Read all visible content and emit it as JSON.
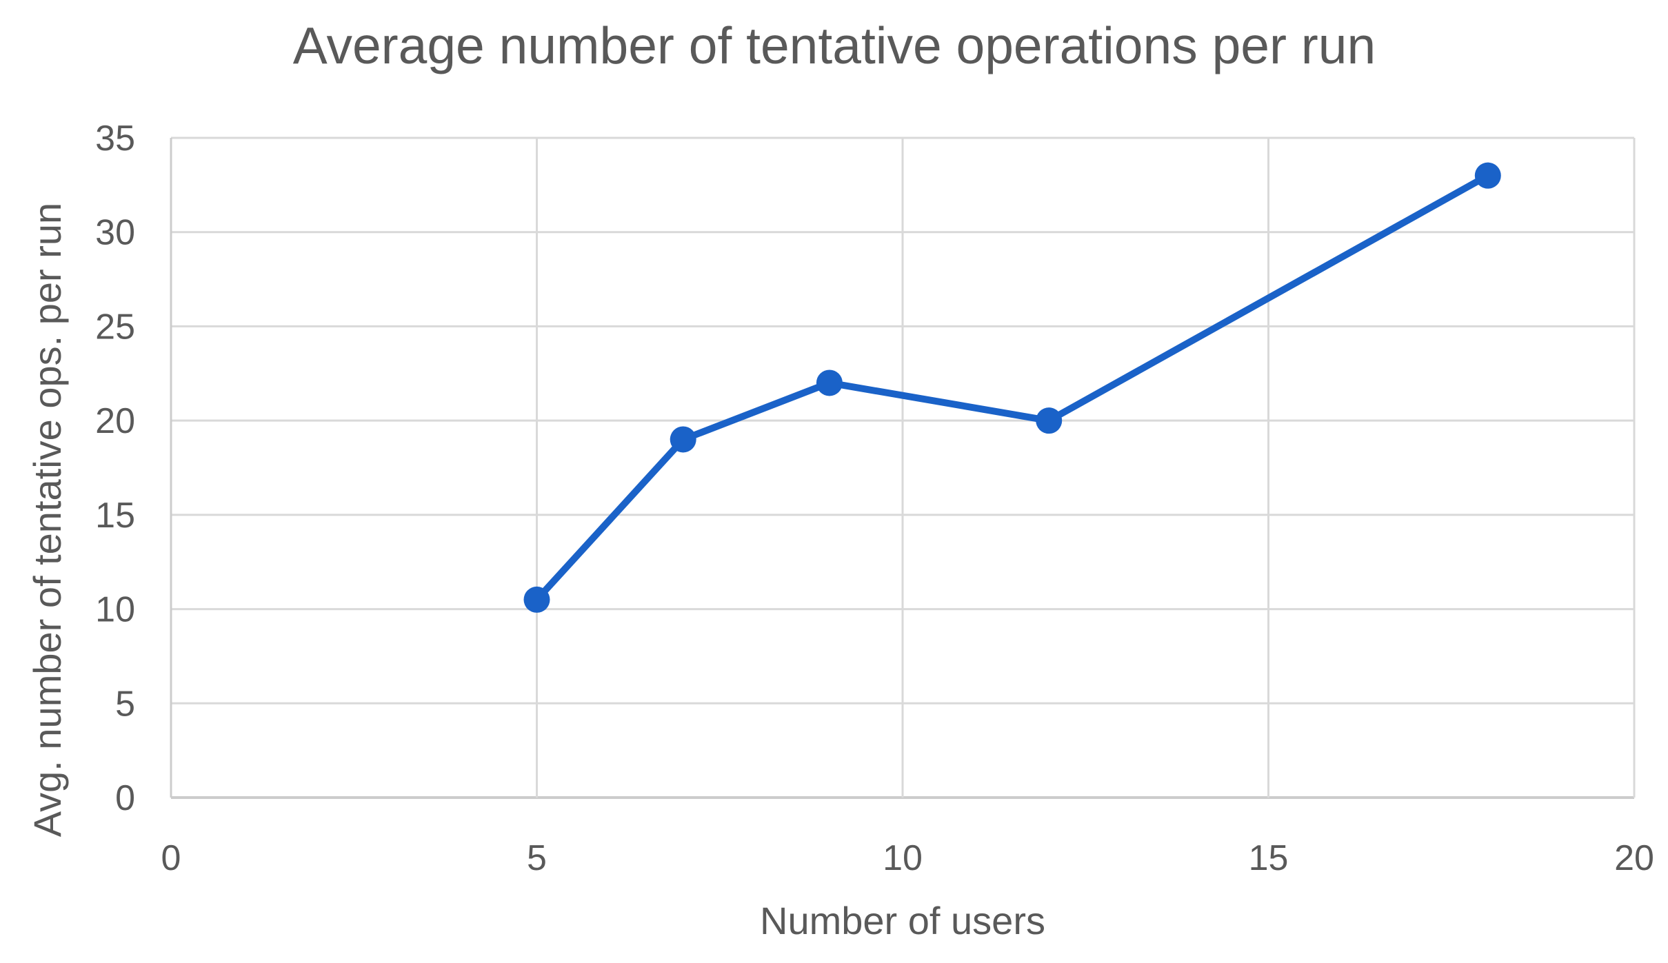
{
  "chart_data": {
    "type": "line",
    "title": "Average number of tentative operations per run",
    "xlabel": "Number of users",
    "ylabel": "Avg. number of tentative ops. per run",
    "x": [
      5,
      7,
      9,
      12,
      18
    ],
    "y": [
      10.5,
      19,
      22,
      20,
      33
    ],
    "series_points": [
      {
        "x": 5,
        "y": 10.5
      },
      {
        "x": 7,
        "y": 19
      },
      {
        "x": 9,
        "y": 22
      },
      {
        "x": 12,
        "y": 20
      },
      {
        "x": 18,
        "y": 33
      }
    ],
    "xlim": [
      0,
      20
    ],
    "ylim": [
      0,
      35
    ],
    "x_ticks": [
      0,
      5,
      10,
      15,
      20
    ],
    "y_ticks": [
      0,
      5,
      10,
      15,
      20,
      25,
      30,
      35
    ],
    "grid": true,
    "legend": "none",
    "colors": {
      "line": "#1A62C8",
      "marker": "#1A62C8",
      "grid": "#D9D9D9",
      "axis": "#CCCCCC",
      "text": "#595959"
    }
  }
}
